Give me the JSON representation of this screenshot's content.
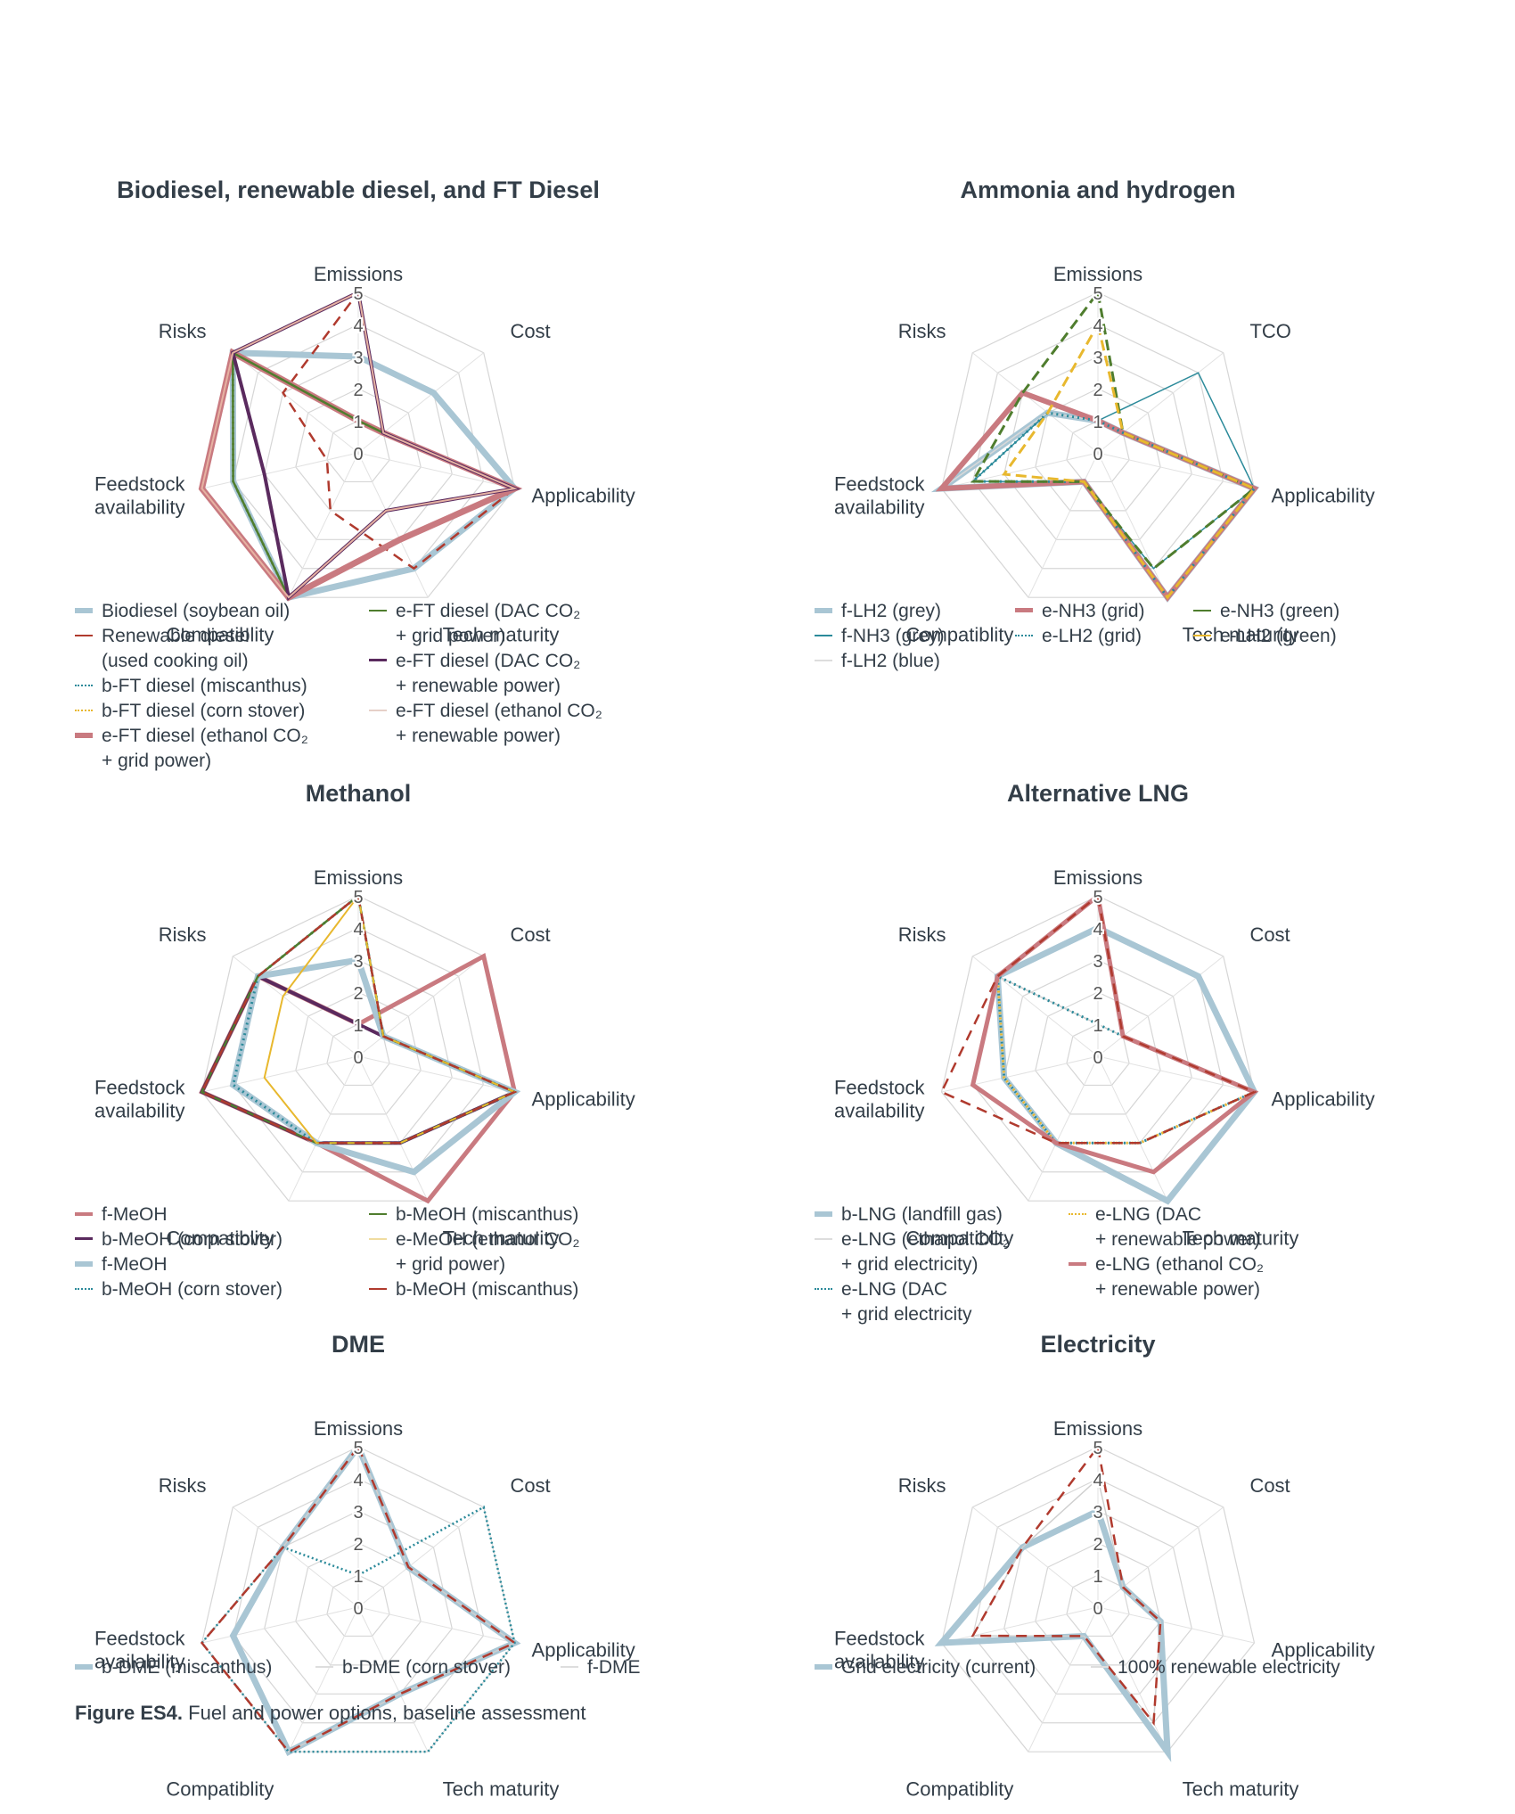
{
  "figure_caption": {
    "label": "Figure ES4.",
    "text": " Fuel and power options, baseline assessment"
  },
  "chart_data": [
    {
      "type": "radar",
      "title": "Biodiesel, renewable diesel, and FT Diesel",
      "axes": [
        "Emissions",
        "Cost",
        "Applicability",
        "Tech maturity",
        "Compatiblity",
        "Feedstock\navailability",
        "Risks"
      ],
      "ticks": [
        "0",
        "1",
        "2",
        "3",
        "4",
        "5"
      ],
      "rmax": 5,
      "series": [
        {
          "name": "Biodiesel (soybean oil)",
          "color": "#a9c6d4",
          "width": 7,
          "dash": "",
          "values": [
            3,
            3,
            5,
            4,
            5,
            4,
            5
          ]
        },
        {
          "name": "Renewable diesel\n(used cooking oil)",
          "color": "#b03a2e",
          "width": 2.5,
          "dash": "12,8",
          "values": [
            5,
            1,
            5,
            4,
            2,
            1,
            3
          ]
        },
        {
          "name": "b-FT diesel (miscanthus)",
          "color": "#2b8a9a",
          "width": 3,
          "dash": "2,4",
          "values": [
            5,
            1,
            5,
            2,
            5,
            4,
            5
          ]
        },
        {
          "name": "b-FT diesel (corn stover)",
          "color": "#e8b82e",
          "width": 2.5,
          "dash": "2,4",
          "values": [
            5,
            1,
            5,
            2,
            5,
            4,
            5
          ]
        },
        {
          "name": "e-FT diesel (ethanol CO₂\n+ grid power)",
          "color": "#c97a80",
          "width": 7,
          "dash": "",
          "values": [
            1,
            1,
            5,
            3,
            5,
            5,
            5
          ]
        },
        {
          "name": "e-FT diesel (DAC CO₂\n+ grid power)",
          "color": "#4f7d2e",
          "width": 2.5,
          "dash": "",
          "values": [
            1,
            1,
            5,
            2,
            5,
            4,
            5
          ]
        },
        {
          "name": "e-FT diesel (DAC CO₂\n+ renewable power)",
          "color": "#5a2a5e",
          "width": 4,
          "dash": "",
          "values": [
            5,
            1,
            5,
            2,
            5,
            3,
            5
          ]
        },
        {
          "name": "e-FT diesel (ethanol CO₂\n+ renewable power)",
          "color": "#e6b2a2",
          "width": 2,
          "dash": "",
          "values": [
            5,
            1,
            5,
            2,
            5,
            5,
            5
          ]
        }
      ]
    },
    {
      "type": "radar",
      "title": "Ammonia and hydrogen",
      "axes": [
        "Emissions",
        "TCO",
        "Applicability",
        "Tech maturity",
        "Compatiblity",
        "Feedstock\navailability",
        "Risks"
      ],
      "ticks": [
        "0",
        "1",
        "2",
        "3",
        "4",
        "5"
      ],
      "rmax": 5,
      "series": [
        {
          "name": "f-LH2 (grey)",
          "color": "#a9c6d4",
          "width": 7,
          "dash": "",
          "values": [
            1,
            1,
            5,
            5,
            1,
            5,
            2
          ]
        },
        {
          "name": "f-NH3 (grey)",
          "color": "#2b8a9a",
          "width": 1.5,
          "dash": "",
          "values": [
            1,
            4,
            5,
            4,
            1,
            4,
            2
          ]
        },
        {
          "name": "f-LH2 (blue)",
          "color": "#d9d9d9",
          "width": 1.5,
          "dash": "",
          "values": [
            1,
            1,
            5,
            5,
            1,
            5,
            2
          ]
        },
        {
          "name": "e-NH3 (grid)",
          "color": "#c97a80",
          "width": 6,
          "dash": "",
          "values": [
            1,
            1,
            5,
            5,
            1,
            5,
            3
          ]
        },
        {
          "name": "e-LH2 (grid)",
          "color": "#2b8a9a",
          "width": 3,
          "dash": "2,4",
          "values": [
            1,
            1,
            5,
            5,
            1,
            4,
            2
          ]
        },
        {
          "name": "e-NH3 (green)",
          "color": "#4f7d2e",
          "width": 3,
          "dash": "12,6",
          "values": [
            5,
            1,
            5,
            4,
            1,
            4,
            3
          ]
        },
        {
          "name": "e-LH2 (green)",
          "color": "#e8b82e",
          "width": 3,
          "dash": "12,6",
          "values": [
            4,
            1,
            5,
            5,
            1,
            3,
            2
          ]
        }
      ]
    },
    {
      "type": "radar",
      "title": "Methanol",
      "axes": [
        "Emissions",
        "Cost",
        "Applicability",
        "Tech maturity",
        "Compatiblity",
        "Feedstock\navailability",
        "Risks"
      ],
      "ticks": [
        "0",
        "1",
        "2",
        "3",
        "4",
        "5"
      ],
      "rmax": 5,
      "series": [
        {
          "name": "f-MeOH",
          "color": "#c97a80",
          "width": 5,
          "dash": "",
          "values": [
            1,
            5,
            5,
            5,
            3,
            5,
            4
          ]
        },
        {
          "name": "b-MeOH (corn stover)",
          "color": "#5a2a5e",
          "width": 4,
          "dash": "",
          "values": [
            1,
            1,
            5,
            3,
            3,
            5,
            4
          ]
        },
        {
          "name": "f-MeOH",
          "color": "#a9c6d4",
          "width": 7,
          "dash": "",
          "values": [
            3,
            1,
            5,
            4,
            3,
            4,
            4
          ]
        },
        {
          "name": "b-MeOH (corn stover)",
          "color": "#2b8a9a",
          "width": 3,
          "dash": "2,4",
          "values": [
            5,
            1,
            5,
            3,
            3,
            4,
            4
          ]
        },
        {
          "name": "b-MeOH (miscanthus)",
          "color": "#4f7d2e",
          "width": 2.5,
          "dash": "",
          "values": [
            5,
            1,
            5,
            3,
            3,
            5,
            4
          ]
        },
        {
          "name": "e-MeOH (ethanol CO₂\n+ grid power)",
          "color": "#e8b82e",
          "width": 2,
          "dash": "",
          "values": [
            5,
            1,
            5,
            3,
            3,
            3,
            3
          ]
        },
        {
          "name": "b-MeOH (miscanthus)",
          "color": "#b03a2e",
          "width": 2.5,
          "dash": "12,8",
          "values": [
            5,
            1,
            5,
            3,
            3,
            5,
            4
          ]
        }
      ]
    },
    {
      "type": "radar",
      "title": "Alternative LNG",
      "axes": [
        "Emissions",
        "Cost",
        "Applicability",
        "Tech maturity",
        "Compatiblity",
        "Feedstock\navailability",
        "Risks"
      ],
      "ticks": [
        "0",
        "1",
        "2",
        "3",
        "4",
        "5"
      ],
      "rmax": 5,
      "series": [
        {
          "name": "b-LNG (landfill gas)",
          "color": "#a9c6d4",
          "width": 7,
          "dash": "",
          "values": [
            4,
            4,
            5,
            5,
            3,
            3,
            4
          ]
        },
        {
          "name": "e-LNG (ethanol CO₂\n+ grid electricity)",
          "color": "#cfcfcf",
          "width": 1.5,
          "dash": "",
          "values": [
            1,
            1,
            5,
            3,
            3,
            3,
            4
          ]
        },
        {
          "name": "e-LNG (DAC\n+ grid electricity",
          "color": "#2b8a9a",
          "width": 3,
          "dash": "2,4",
          "values": [
            1,
            1,
            5,
            3,
            3,
            3,
            4
          ]
        },
        {
          "name": "e-LNG (DAC\n+ renewable power)",
          "color": "#e8b82e",
          "width": 3,
          "dash": "2,4",
          "values": [
            5,
            1,
            5,
            3,
            3,
            3,
            4
          ]
        },
        {
          "name": "e-LNG (ethanol CO₂\n+ renewable power)",
          "color": "#c97a80",
          "width": 5,
          "dash": "",
          "values": [
            5,
            1,
            5,
            4,
            3,
            4,
            4
          ]
        },
        {
          "name": "",
          "color": "#b03a2e",
          "width": 2.5,
          "dash": "12,8",
          "values": [
            5,
            1,
            5,
            3,
            3,
            5,
            4
          ]
        }
      ]
    },
    {
      "type": "radar",
      "title": "DME",
      "axes": [
        "Emissions",
        "Cost",
        "Applicability",
        "Tech maturity",
        "Compatiblity",
        "Feedstock\navailability",
        "Risks"
      ],
      "ticks": [
        "0",
        "1",
        "2",
        "3",
        "4",
        "5"
      ],
      "rmax": 5,
      "series": [
        {
          "name": "b-DME (miscanthus)",
          "color": "#a9c6d4",
          "width": 7,
          "dash": "",
          "values": [
            5,
            2,
            5,
            3,
            5,
            4,
            3
          ]
        },
        {
          "name": "b-DME (corn stover)",
          "color": "#cfcfcf",
          "width": 1.5,
          "dash": "",
          "values": [
            5,
            2,
            5,
            3,
            5,
            5,
            3
          ]
        },
        {
          "name": "f-DME",
          "color": "#2b8a9a",
          "width": 2.5,
          "dash": "2,3",
          "values": [
            1,
            5,
            5,
            5,
            5,
            5,
            3
          ]
        },
        {
          "name": "",
          "color": "#b03a2e",
          "width": 2.5,
          "dash": "12,8",
          "values": [
            5,
            2,
            5,
            3,
            5,
            5,
            3
          ]
        }
      ]
    },
    {
      "type": "radar",
      "title": "Electricity",
      "axes": [
        "Emissions",
        "Cost",
        "Applicability",
        "Tech maturity",
        "Compatiblity",
        "Feedstock\navailability",
        "Risks"
      ],
      "ticks": [
        "0",
        "1",
        "2",
        "3",
        "4",
        "5"
      ],
      "rmax": 5,
      "series": [
        {
          "name": "Grid electricity (current)",
          "color": "#a9c6d4",
          "width": 7,
          "dash": "",
          "values": [
            3,
            1,
            2,
            5,
            1,
            5,
            3
          ]
        },
        {
          "name": "100% renewable electricity",
          "color": "#cfcfcf",
          "width": 1.5,
          "dash": "",
          "values": [
            4,
            1,
            2,
            4,
            1,
            4,
            3
          ]
        },
        {
          "name": "",
          "color": "#b03a2e",
          "width": 2.5,
          "dash": "12,8",
          "values": [
            5,
            1,
            2,
            4,
            1,
            4,
            3
          ]
        }
      ]
    }
  ],
  "legends": [
    {
      "columns": [
        [
          {
            "label": "Biodiesel (soybean oil)",
            "color": "#a9c6d4",
            "width": 7,
            "style": "solid"
          },
          {
            "label": "Renewable diesel\n(used cooking oil)",
            "color": "#b03a2e",
            "width": 3,
            "style": "solid"
          },
          {
            "label": "b-FT diesel (miscanthus)",
            "color": "#2b8a9a",
            "width": 3,
            "style": "dotted"
          },
          {
            "label": "b-FT diesel (corn stover)",
            "color": "#e8b82e",
            "width": 3,
            "style": "dotted"
          },
          {
            "label": "e-FT diesel (ethanol CO₂\n+ grid power)",
            "color": "#c97a80",
            "width": 7,
            "style": "solid"
          }
        ],
        [
          {
            "label": "e-FT diesel (DAC CO₂\n+ grid power)",
            "color": "#4f7d2e",
            "width": 3,
            "style": "solid"
          },
          {
            "label": "e-FT diesel (DAC CO₂\n+ renewable power)",
            "color": "#5a2a5e",
            "width": 4,
            "style": "solid"
          },
          {
            "label": "e-FT diesel (ethanol CO₂\n+ renewable power)",
            "color": "#e6d0c8",
            "width": 2,
            "style": "solid"
          }
        ]
      ]
    },
    {
      "columns": [
        [
          {
            "label": "f-LH2 (grey)",
            "color": "#a9c6d4",
            "width": 7,
            "style": "solid"
          },
          {
            "label": "f-NH3 (grey)",
            "color": "#2b8a9a",
            "width": 2,
            "style": "solid"
          },
          {
            "label": "f-LH2 (blue)",
            "color": "#dddddd",
            "width": 2,
            "style": "solid"
          }
        ],
        [
          {
            "label": "e-NH3 (grid)",
            "color": "#c97a80",
            "width": 6,
            "style": "solid"
          },
          {
            "label": "e-LH2 (grid)",
            "color": "#2b8a9a",
            "width": 3,
            "style": "dotted"
          }
        ],
        [
          {
            "label": "e-NH3 (green)",
            "color": "#4f7d2e",
            "width": 3,
            "style": "solid"
          },
          {
            "label": "e-LH2 (green)",
            "color": "#e8b82e",
            "width": 3,
            "style": "solid"
          }
        ]
      ]
    },
    {
      "columns": [
        [
          {
            "label": "f-MeOH",
            "color": "#c97a80",
            "width": 5,
            "style": "solid"
          },
          {
            "label": "b-MeOH (corn stover)",
            "color": "#5a2a5e",
            "width": 4,
            "style": "solid"
          },
          {
            "label": "f-MeOH",
            "color": "#a9c6d4",
            "width": 7,
            "style": "solid"
          },
          {
            "label": "b-MeOH (corn stover)",
            "color": "#2b8a9a",
            "width": 3,
            "style": "dotted"
          }
        ],
        [
          {
            "label": "b-MeOH (miscanthus)",
            "color": "#4f7d2e",
            "width": 3,
            "style": "solid"
          },
          {
            "label": "e-MeOH (ethanol CO₂\n+ grid power)",
            "color": "#f0dca0",
            "width": 2,
            "style": "solid"
          },
          {
            "label": "b-MeOH (miscanthus)",
            "color": "#b03a2e",
            "width": 3,
            "style": "solid"
          }
        ]
      ]
    },
    {
      "columns": [
        [
          {
            "label": "b-LNG (landfill gas)",
            "color": "#a9c6d4",
            "width": 7,
            "style": "solid"
          },
          {
            "label": "e-LNG (ethanol CO₂\n+ grid electricity)",
            "color": "#dddddd",
            "width": 2,
            "style": "solid"
          },
          {
            "label": "e-LNG (DAC\n+ grid electricity",
            "color": "#2b8a9a",
            "width": 3,
            "style": "dotted"
          }
        ],
        [
          {
            "label": "e-LNG (DAC\n+ renewable power)",
            "color": "#e8b82e",
            "width": 3,
            "style": "dotted"
          },
          {
            "label": "e-LNG (ethanol CO₂\n+ renewable power)",
            "color": "#c97a80",
            "width": 5,
            "style": "solid"
          }
        ]
      ]
    },
    {
      "columns": [
        [
          {
            "label": "b-DME (miscanthus)",
            "color": "#a9c6d4",
            "width": 7,
            "style": "solid"
          }
        ],
        [
          {
            "label": "b-DME (corn stover)",
            "color": "#dddddd",
            "width": 2,
            "style": "solid"
          }
        ],
        [
          {
            "label": "f-DME",
            "color": "#dddddd",
            "width": 2,
            "style": "solid"
          }
        ]
      ]
    },
    {
      "columns": [
        [
          {
            "label": "Grid electricity (current)",
            "color": "#a9c6d4",
            "width": 7,
            "style": "solid"
          }
        ],
        [
          {
            "label": "100% renewable electricity",
            "color": "#dddddd",
            "width": 2,
            "style": "solid"
          }
        ]
      ]
    }
  ]
}
